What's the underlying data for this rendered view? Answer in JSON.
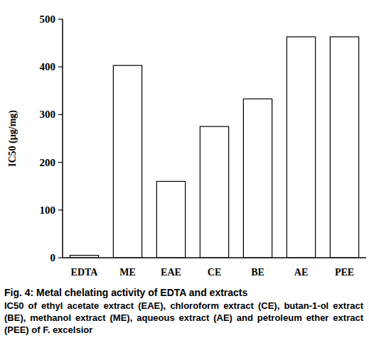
{
  "chart_data": {
    "type": "bar",
    "title": "Fig. 4: Metal chelating activity of EDTA and extracts",
    "subtitle": "IC50 of ethyl acetate extract (EAE), chloroform extract (CE), butan-1-ol extract (BE), methanol extract (ME), aqueous extract (AE) and petroleum ether extract (PEE) of F. excelsior",
    "y_label": "IC50 (µg/mg)",
    "categories": [
      "EDTA",
      "ME",
      "EAE",
      "CE",
      "BE",
      "AE",
      "PEE"
    ],
    "values": [
      5,
      403,
      160,
      275,
      333,
      463,
      463
    ],
    "color": "#ffffff",
    "ylim": [
      0,
      500
    ],
    "yticks": [
      0,
      100,
      200,
      300,
      400,
      500
    ],
    "grid": false
  }
}
